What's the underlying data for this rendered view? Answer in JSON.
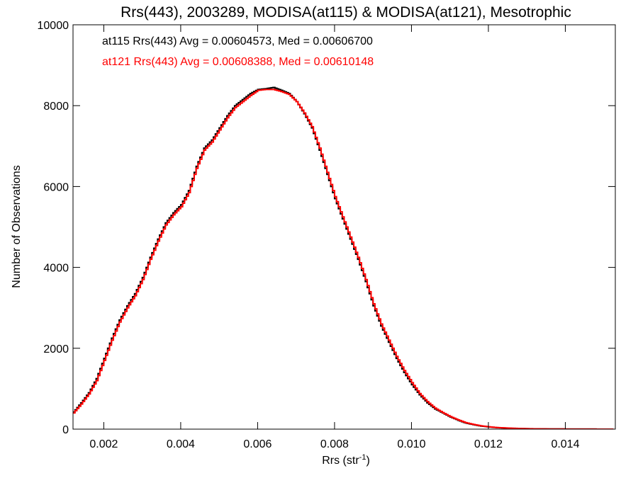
{
  "chart_data": {
    "type": "histogram",
    "title": "Rrs(443), 2003289, MODISA(at115) & MODISA(at121), Mesotrophic",
    "xlabel": "Rrs (str",
    "xlabel_sup": "-1",
    "xlabel_end": ")",
    "ylabel": "Number of Observations",
    "xlim": [
      0.0012,
      0.0153
    ],
    "ylim": [
      0,
      10000
    ],
    "grid": false,
    "legend_position": "top-left",
    "x_ticks": [
      0.002,
      0.004,
      0.006,
      0.008,
      0.01,
      0.012,
      0.014
    ],
    "x_tick_labels": [
      "0.002",
      "0.004",
      "0.006",
      "0.008",
      "0.010",
      "0.012",
      "0.014"
    ],
    "y_ticks": [
      0,
      2000,
      4000,
      6000,
      8000,
      10000
    ],
    "y_tick_labels": [
      "0",
      "2000",
      "4000",
      "6000",
      "8000",
      "10000"
    ],
    "bin_width": 5e-05,
    "series": [
      {
        "name": "at115",
        "color": "#000000",
        "legend_text": "at115 Rrs(443) Avg = 0.00604573, Med = 0.00606700",
        "x": [
          0.0012,
          0.0014,
          0.0016,
          0.0018,
          0.002,
          0.0022,
          0.0024,
          0.0026,
          0.0028,
          0.003,
          0.0032,
          0.0034,
          0.0036,
          0.0038,
          0.004,
          0.0042,
          0.0044,
          0.0046,
          0.0048,
          0.005,
          0.0052,
          0.0054,
          0.0056,
          0.0058,
          0.006,
          0.0062,
          0.0064,
          0.0066,
          0.0068,
          0.007,
          0.0072,
          0.0074,
          0.0076,
          0.0078,
          0.008,
          0.0082,
          0.0084,
          0.0086,
          0.0088,
          0.009,
          0.0092,
          0.0094,
          0.0096,
          0.0098,
          0.01,
          0.0102,
          0.0104,
          0.0106,
          0.0108,
          0.011,
          0.0112,
          0.0114,
          0.0116,
          0.0118,
          0.012,
          0.0122,
          0.0124,
          0.0126,
          0.0128,
          0.013,
          0.0132,
          0.0134,
          0.0136,
          0.0138,
          0.014,
          0.0142,
          0.0144,
          0.0146,
          0.0148,
          0.015,
          0.0152
        ],
        "y": [
          420,
          650,
          900,
          1250,
          1750,
          2250,
          2700,
          3050,
          3350,
          3750,
          4250,
          4700,
          5100,
          5350,
          5550,
          5900,
          6500,
          6950,
          7150,
          7450,
          7750,
          8000,
          8150,
          8300,
          8400,
          8420,
          8450,
          8380,
          8300,
          8100,
          7800,
          7450,
          6900,
          6300,
          5700,
          5200,
          4700,
          4200,
          3650,
          3050,
          2550,
          2150,
          1750,
          1400,
          1100,
          850,
          650,
          500,
          400,
          300,
          220,
          150,
          110,
          75,
          55,
          38,
          28,
          20,
          15,
          10,
          8,
          6,
          5,
          4,
          3,
          3,
          2,
          2,
          1,
          1,
          1
        ]
      },
      {
        "name": "at121",
        "color": "#ff0000",
        "legend_text": "at121 Rrs(443) Avg = 0.00608388, Med = 0.00610148",
        "x": [
          0.0012,
          0.0014,
          0.0016,
          0.0018,
          0.002,
          0.0022,
          0.0024,
          0.0026,
          0.0028,
          0.003,
          0.0032,
          0.0034,
          0.0036,
          0.0038,
          0.004,
          0.0042,
          0.0044,
          0.0046,
          0.0048,
          0.005,
          0.0052,
          0.0054,
          0.0056,
          0.0058,
          0.006,
          0.0062,
          0.0064,
          0.0066,
          0.0068,
          0.007,
          0.0072,
          0.0074,
          0.0076,
          0.0078,
          0.008,
          0.0082,
          0.0084,
          0.0086,
          0.0088,
          0.009,
          0.0092,
          0.0094,
          0.0096,
          0.0098,
          0.01,
          0.0102,
          0.0104,
          0.0106,
          0.0108,
          0.011,
          0.0112,
          0.0114,
          0.0116,
          0.0118,
          0.012,
          0.0122,
          0.0124,
          0.0126,
          0.0128,
          0.013,
          0.0132,
          0.0134,
          0.0136,
          0.0138,
          0.014,
          0.0142,
          0.0144,
          0.0146,
          0.0148,
          0.015,
          0.0152
        ],
        "y": [
          400,
          620,
          870,
          1200,
          1700,
          2200,
          2650,
          3000,
          3300,
          3700,
          4200,
          4650,
          5050,
          5300,
          5500,
          5850,
          6450,
          6900,
          7100,
          7400,
          7700,
          7950,
          8100,
          8250,
          8380,
          8400,
          8400,
          8350,
          8280,
          8100,
          7820,
          7480,
          6950,
          6350,
          5750,
          5250,
          4750,
          4250,
          3700,
          3100,
          2600,
          2200,
          1800,
          1450,
          1150,
          880,
          680,
          520,
          410,
          310,
          230,
          160,
          115,
          80,
          58,
          40,
          30,
          22,
          16,
          11,
          9,
          7,
          5,
          4,
          3,
          3,
          2,
          2,
          1,
          1,
          1
        ]
      }
    ]
  }
}
